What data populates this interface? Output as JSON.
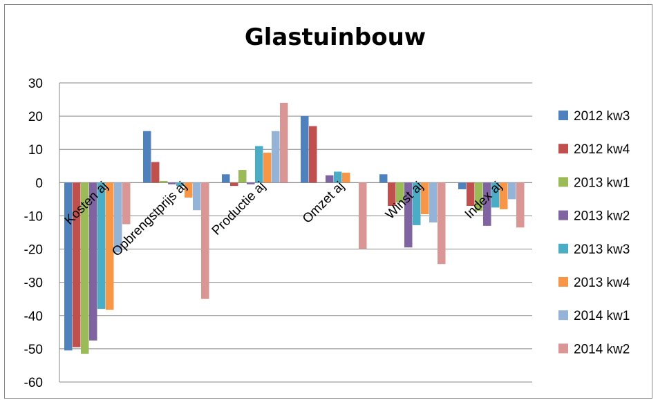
{
  "chart_data": {
    "type": "bar",
    "title": "Glastuinbouw",
    "categories": [
      "Kosten aj",
      "Opbrengstprijs aj",
      "Productie aj",
      "Omzet aj",
      "Winst aj",
      "Index aj"
    ],
    "ylim": [
      -60,
      30
    ],
    "yticks": [
      30,
      20,
      10,
      0,
      -10,
      -20,
      -30,
      -40,
      -50,
      -60
    ],
    "grid": true,
    "legend_position": "right",
    "series": [
      {
        "name": "2012 kw3",
        "color": "#4F81BD",
        "values": [
          -50.5,
          15.5,
          2.5,
          20,
          2.5,
          -2
        ]
      },
      {
        "name": "2012 kw4",
        "color": "#C0504D",
        "values": [
          -49.5,
          6.2,
          -1,
          17,
          -7,
          -7
        ]
      },
      {
        "name": "2013 kw1",
        "color": "#9BBB59",
        "values": [
          -51.5,
          0.5,
          3.8,
          0,
          -6,
          -8.5
        ]
      },
      {
        "name": "2013 kw2",
        "color": "#8064A2",
        "values": [
          -47.5,
          -0.5,
          -0.5,
          2.2,
          -19.5,
          -13
        ]
      },
      {
        "name": "2013 kw3",
        "color": "#4BACC6",
        "values": [
          -38,
          -1,
          11,
          3.3,
          -12.8,
          -7.5
        ]
      },
      {
        "name": "2013 kw4",
        "color": "#F79646",
        "values": [
          -38.3,
          -4.5,
          9,
          3,
          -9.5,
          -8
        ]
      },
      {
        "name": "2014 kw1",
        "color": "#95B3D7",
        "values": [
          -21,
          -8.3,
          15.5,
          0,
          -12,
          -5
        ]
      },
      {
        "name": "2014 kw2",
        "color": "#D99694",
        "values": [
          -12.5,
          -35,
          24,
          -20,
          -24.5,
          -13.5
        ]
      }
    ]
  }
}
